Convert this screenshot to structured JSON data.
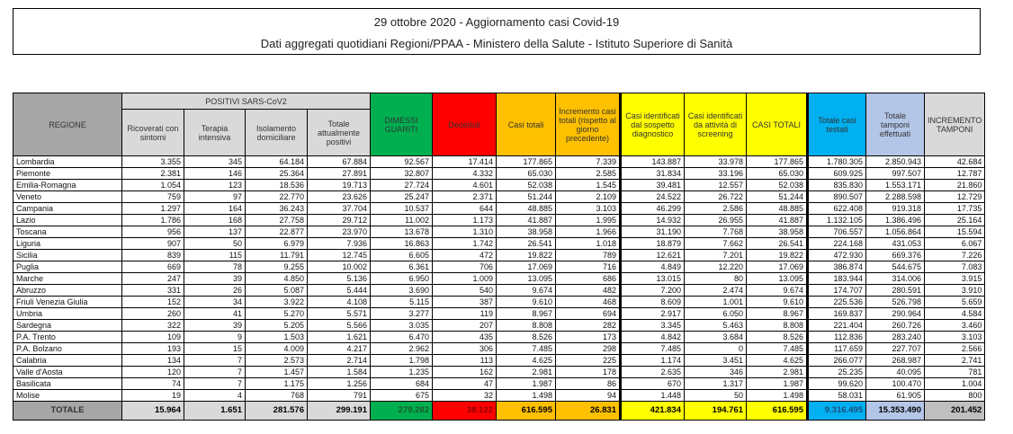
{
  "header": {
    "title": "29 ottobre 2020 - Aggiornamento casi Covid-19",
    "subtitle": "Dati aggregati quotidiani Regioni/PPAA - Ministero della Salute - Istituto Superiore di Sanità"
  },
  "table": {
    "group_header": "POSITIVI SARS-CoV2",
    "columns": [
      "REGIONE",
      "Ricoverati con sintomi",
      "Terapia intensiva",
      "Isolamento domiciliare",
      "Totale attualmente positivi",
      "DIMESSI GUARITI",
      "Deceduti",
      "Casi totali",
      "Incremento casi totali (rispetto al giorno precedente)",
      "Casi identificati dal sospetto diagnostico",
      "Casi identificati da attività di screening",
      "CASI TOTALI",
      "Totale casi testati",
      "Totale tamponi effettuati",
      "INCREMENTO TAMPONI"
    ],
    "column_colors": {
      "regione": "#a6a6a6",
      "positivi": "#d9d9d9",
      "dimessi": "#00b050",
      "deceduti": "#ff0000",
      "casi": "#ffc000",
      "identificati": "#ffff00",
      "testati": "#00b0f0",
      "tamponi": "#b4c6e7",
      "incremento_tamponi": "#d9d9d9"
    },
    "rows": [
      [
        "Lombardia",
        "3.355",
        "345",
        "64.184",
        "67.884",
        "92.567",
        "17.414",
        "177.865",
        "7.339",
        "143.887",
        "33.978",
        "177.865",
        "1.780.305",
        "2.850.943",
        "42.684"
      ],
      [
        "Piemonte",
        "2.381",
        "146",
        "25.364",
        "27.891",
        "32.807",
        "4.332",
        "65.030",
        "2.585",
        "31.834",
        "33.196",
        "65.030",
        "609.925",
        "997.507",
        "12.787"
      ],
      [
        "Emilia-Romagna",
        "1.054",
        "123",
        "18.536",
        "19.713",
        "27.724",
        "4.601",
        "52.038",
        "1.545",
        "39.481",
        "12.557",
        "52.038",
        "835.830",
        "1.553.171",
        "21.860"
      ],
      [
        "Veneto",
        "759",
        "97",
        "22.770",
        "23.626",
        "25.247",
        "2.371",
        "51.244",
        "2.109",
        "24.522",
        "26.722",
        "51.244",
        "890.507",
        "2.288.598",
        "12.729"
      ],
      [
        "Campania",
        "1.297",
        "164",
        "36.243",
        "37.704",
        "10.537",
        "644",
        "48.885",
        "3.103",
        "46.299",
        "2.586",
        "48.885",
        "622.408",
        "919.318",
        "17.735"
      ],
      [
        "Lazio",
        "1.786",
        "168",
        "27.758",
        "29.712",
        "11.002",
        "1.173",
        "41.887",
        "1.995",
        "14.932",
        "26.955",
        "41.887",
        "1.132.105",
        "1.386.496",
        "25.164"
      ],
      [
        "Toscana",
        "956",
        "137",
        "22.877",
        "23.970",
        "13.678",
        "1.310",
        "38.958",
        "1.966",
        "31.190",
        "7.768",
        "38.958",
        "706.557",
        "1.056.864",
        "15.594"
      ],
      [
        "Liguria",
        "907",
        "50",
        "6.979",
        "7.936",
        "16.863",
        "1.742",
        "26.541",
        "1.018",
        "18.879",
        "7.662",
        "26.541",
        "224.168",
        "431.053",
        "6.067"
      ],
      [
        "Sicilia",
        "839",
        "115",
        "11.791",
        "12.745",
        "6.605",
        "472",
        "19.822",
        "789",
        "12.621",
        "7.201",
        "19.822",
        "472.930",
        "669.376",
        "7.226"
      ],
      [
        "Puglia",
        "669",
        "78",
        "9.255",
        "10.002",
        "6.361",
        "706",
        "17.069",
        "716",
        "4.849",
        "12.220",
        "17.069",
        "386.874",
        "544.675",
        "7.083"
      ],
      [
        "Marche",
        "247",
        "39",
        "4.850",
        "5.136",
        "6.950",
        "1.009",
        "13.095",
        "686",
        "13.015",
        "80",
        "13.095",
        "183.944",
        "314.006",
        "3.915"
      ],
      [
        "Abruzzo",
        "331",
        "26",
        "5.087",
        "5.444",
        "3.690",
        "540",
        "9.674",
        "482",
        "7.200",
        "2.474",
        "9.674",
        "174.707",
        "280.591",
        "3.910"
      ],
      [
        "Friuli Venezia Giulia",
        "152",
        "34",
        "3.922",
        "4.108",
        "5.115",
        "387",
        "9.610",
        "468",
        "8.609",
        "1.001",
        "9.610",
        "225.536",
        "526.798",
        "5.659"
      ],
      [
        "Umbria",
        "260",
        "41",
        "5.270",
        "5.571",
        "3.277",
        "119",
        "8.967",
        "694",
        "2.917",
        "6.050",
        "8.967",
        "169.837",
        "290.964",
        "4.584"
      ],
      [
        "Sardegna",
        "322",
        "39",
        "5.205",
        "5.566",
        "3.035",
        "207",
        "8.808",
        "282",
        "3.345",
        "5.463",
        "8.808",
        "221.404",
        "260.726",
        "3.460"
      ],
      [
        "P.A. Trento",
        "109",
        "9",
        "1.503",
        "1.621",
        "6.470",
        "435",
        "8.526",
        "173",
        "4.842",
        "3.684",
        "8.526",
        "112.836",
        "283.240",
        "3.103"
      ],
      [
        "P.A. Bolzano",
        "193",
        "15",
        "4.009",
        "4.217",
        "2.962",
        "306",
        "7.485",
        "298",
        "7.485",
        "0",
        "7.485",
        "117.659",
        "227.707",
        "2.566"
      ],
      [
        "Calabria",
        "134",
        "7",
        "2.573",
        "2.714",
        "1.798",
        "113",
        "4.625",
        "225",
        "1.174",
        "3.451",
        "4.625",
        "266.077",
        "268.987",
        "2.741"
      ],
      [
        "Valle d'Aosta",
        "120",
        "7",
        "1.457",
        "1.584",
        "1.235",
        "162",
        "2.981",
        "178",
        "2.635",
        "346",
        "2.981",
        "25.235",
        "40.095",
        "781"
      ],
      [
        "Basilicata",
        "74",
        "7",
        "1.175",
        "1.256",
        "684",
        "47",
        "1.987",
        "86",
        "670",
        "1.317",
        "1.987",
        "99.620",
        "100.470",
        "1.004"
      ],
      [
        "Molise",
        "19",
        "4",
        "768",
        "791",
        "675",
        "32",
        "1.498",
        "94",
        "1.448",
        "50",
        "1.498",
        "58.031",
        "61.905",
        "800"
      ]
    ],
    "totals": [
      "TOTALE",
      "15.964",
      "1.651",
      "281.576",
      "299.191",
      "279.282",
      "38.122",
      "616.595",
      "26.831",
      "421.834",
      "194.761",
      "616.595",
      "9.316.495",
      "15.353.490",
      "201.452"
    ]
  }
}
